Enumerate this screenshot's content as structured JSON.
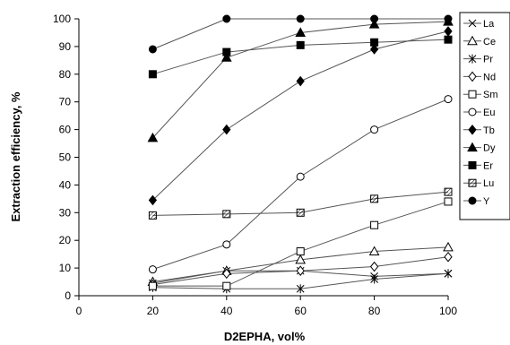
{
  "chart_data": {
    "type": "line",
    "xlabel": "D2EPHA, vol%",
    "ylabel": "Extraction efficiency, %",
    "xlim": [
      0,
      100
    ],
    "ylim": [
      0,
      100
    ],
    "x_ticks": [
      0,
      20,
      40,
      60,
      80,
      100
    ],
    "y_ticks": [
      0,
      10,
      20,
      30,
      40,
      50,
      60,
      70,
      80,
      90,
      100
    ],
    "grid": false,
    "legend_position": "right",
    "x": [
      20,
      40,
      60,
      80,
      100
    ],
    "series": [
      {
        "name": "La",
        "marker": "x",
        "values": [
          4.5,
          9,
          9,
          7,
          8
        ]
      },
      {
        "name": "Ce",
        "marker": "triangle-open",
        "values": [
          5,
          9,
          13,
          16,
          17.5
        ]
      },
      {
        "name": "Pr",
        "marker": "star",
        "values": [
          3,
          2.5,
          2.5,
          6,
          8
        ]
      },
      {
        "name": "Nd",
        "marker": "diamond-open",
        "values": [
          4,
          8,
          9,
          10.5,
          14
        ]
      },
      {
        "name": "Sm",
        "marker": "square-open",
        "values": [
          3.5,
          3.5,
          16,
          25.5,
          34
        ]
      },
      {
        "name": "Eu",
        "marker": "circle-open",
        "values": [
          9.5,
          18.5,
          43,
          60,
          71
        ]
      },
      {
        "name": "Tb",
        "marker": "diamond-filled",
        "values": [
          34.5,
          60,
          77.5,
          89,
          95.5
        ]
      },
      {
        "name": "Dy",
        "marker": "triangle-filled",
        "values": [
          57,
          86,
          95,
          98,
          99
        ]
      },
      {
        "name": "Er",
        "marker": "square-filled",
        "values": [
          80,
          88,
          90.5,
          91.5,
          92.5
        ]
      },
      {
        "name": "Lu",
        "marker": "square-hatched",
        "values": [
          29,
          29.5,
          30,
          35,
          37.5
        ]
      },
      {
        "name": "Y",
        "marker": "circle-filled",
        "values": [
          89,
          100,
          100,
          100,
          100
        ]
      }
    ],
    "colors": {
      "line": "#555555",
      "marker": "#000000",
      "background": "#ffffff"
    }
  }
}
